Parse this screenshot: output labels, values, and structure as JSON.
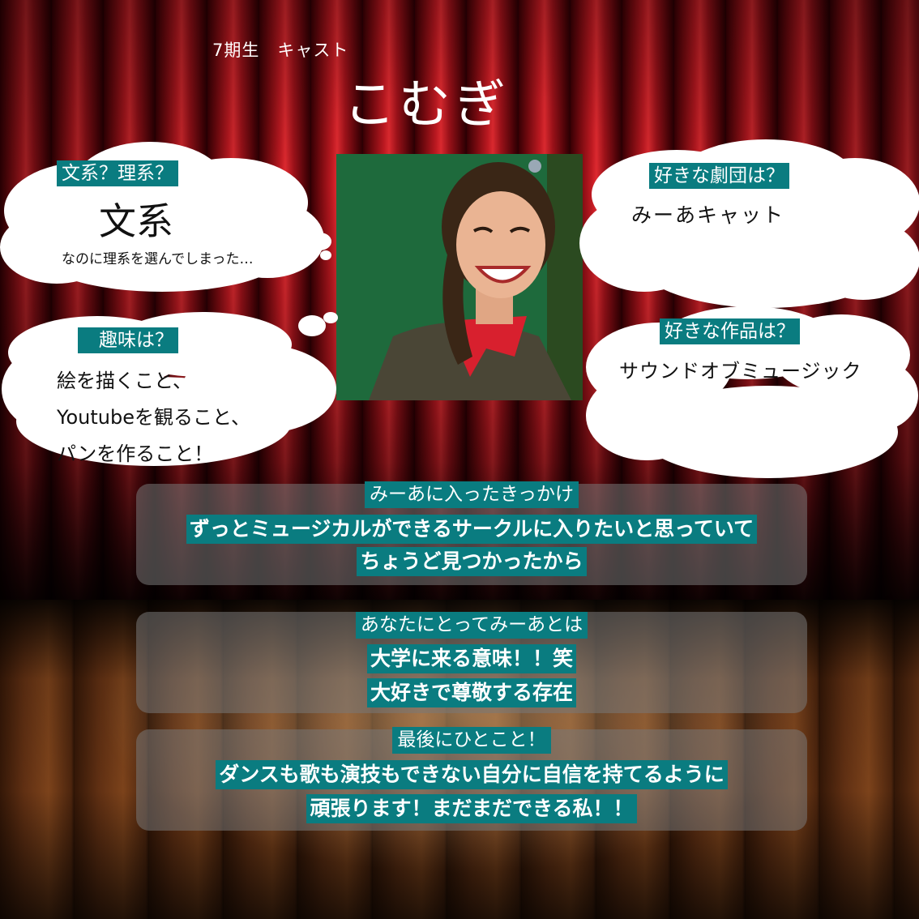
{
  "header": {
    "subtitle": "7期生　キャスト",
    "name": "こむぎ"
  },
  "clouds": {
    "bunkei": {
      "label": "文系？理系？",
      "answer": "文系",
      "note": "なのに理系を選んでしまった…"
    },
    "hobby": {
      "label": "趣味は？",
      "lines": [
        "絵を描くこと、",
        "Youtubeを観ること、",
        "パンを作ること！"
      ]
    },
    "troupe": {
      "label": "好きな劇団は？",
      "answer": "みーあキャット"
    },
    "work": {
      "label": "好きな作品は？",
      "answer": "サウンドオブミュージック"
    }
  },
  "panels": [
    {
      "title": "みーあに入ったきっかけ",
      "lines": [
        "ずっとミュージカルができるサークルに入りたいと思っていて",
        "ちょうど見つかったから"
      ]
    },
    {
      "title": "あなたにとってみーあとは",
      "lines": [
        "大学に来る意味！！笑",
        "大好きで尊敬する存在"
      ]
    },
    {
      "title": "最後にひとこと！",
      "lines": [
        "ダンスも歌も演技もできない自分に自信を持てるように",
        "頑張ります！まだまだできる私！！"
      ]
    }
  ],
  "colors": {
    "label_bg": "#0a7c80",
    "curtain": "#c21a22",
    "panel": "#787878"
  }
}
